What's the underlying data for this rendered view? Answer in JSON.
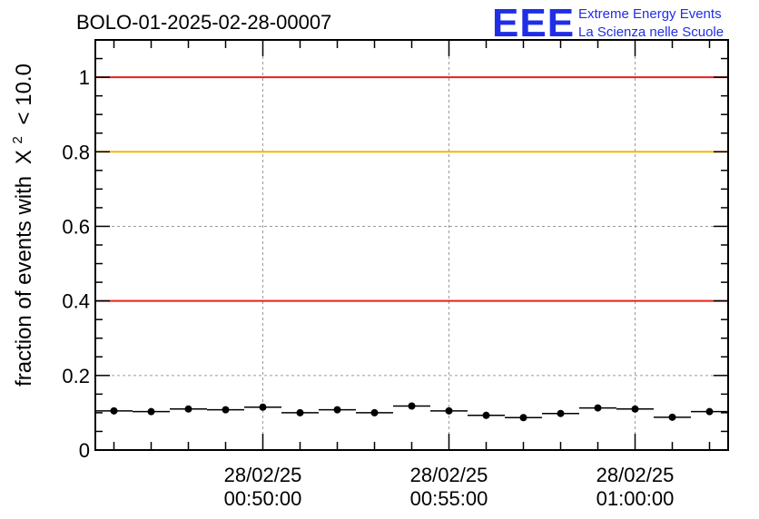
{
  "header": {
    "run_title": "BOLO-01-2025-02-28-00007",
    "logo_text": "EEE",
    "logo_line1": "Extreme Energy Events",
    "logo_line2": "La Scienza nelle Scuole"
  },
  "chart_data": {
    "type": "scatter",
    "title": "BOLO-01-2025-02-28-00007",
    "ylabel_prefix": "fraction of events with",
    "ylabel_symbol": "X",
    "ylabel_sup": "2",
    "ylabel_suffix": "< 10.0",
    "ylim": [
      0,
      1.1
    ],
    "yticks": [
      0,
      0.2,
      0.4,
      0.6,
      0.8,
      1
    ],
    "ytick_labels": [
      "0",
      "0.2",
      "0.4",
      "0.6",
      "0.8",
      "1"
    ],
    "xlim_minutes": [
      45.5,
      62.5
    ],
    "xticks_minutes": [
      50,
      55,
      60
    ],
    "xtick_labels": [
      {
        "date": "28/02/25",
        "time": "00:50:00"
      },
      {
        "date": "28/02/25",
        "time": "00:55:00"
      },
      {
        "date": "28/02/25",
        "time": "01:00:00"
      }
    ],
    "grid": true,
    "reference_lines": [
      {
        "y": 1.0,
        "color": "#e32219"
      },
      {
        "y": 0.8,
        "color": "#f5b800"
      },
      {
        "y": 0.4,
        "color": "#e32219"
      }
    ],
    "bin_width_minutes": 1,
    "x_minutes": [
      46,
      47,
      48,
      49,
      50,
      51,
      52,
      53,
      54,
      55,
      56,
      57,
      58,
      59,
      60,
      61,
      62
    ],
    "values": [
      0.105,
      0.103,
      0.11,
      0.108,
      0.115,
      0.1,
      0.108,
      0.1,
      0.118,
      0.105,
      0.093,
      0.087,
      0.098,
      0.113,
      0.11,
      0.088,
      0.103
    ],
    "marker_color": "#000000"
  }
}
